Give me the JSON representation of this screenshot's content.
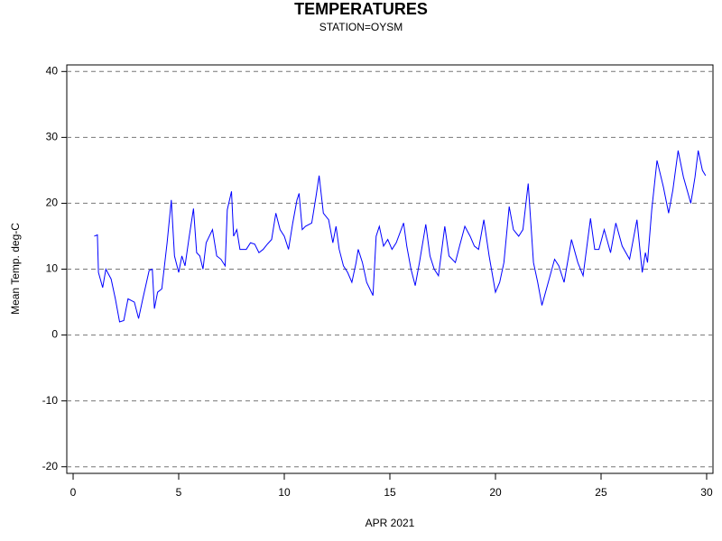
{
  "chart_data": {
    "type": "line",
    "title": "TEMPERATURES",
    "subtitle": "STATION=OYSM",
    "x_label": "APR 2021",
    "y_label": "Mean Temp. deg-C",
    "xlim": [
      -0.3,
      30.3
    ],
    "xticks": [
      0,
      5,
      10,
      15,
      20,
      25,
      30
    ],
    "ylim": [
      -21,
      41
    ],
    "yticks": [
      -20,
      -10,
      0,
      10,
      20,
      30,
      40
    ],
    "grid": true,
    "x": [
      1.0,
      1.15,
      1.2,
      1.4,
      1.55,
      1.8,
      2.0,
      2.2,
      2.4,
      2.6,
      2.9,
      3.1,
      3.3,
      3.6,
      3.75,
      3.85,
      4.0,
      4.2,
      4.45,
      4.65,
      4.8,
      5.0,
      5.15,
      5.3,
      5.5,
      5.7,
      5.85,
      6.0,
      6.15,
      6.3,
      6.6,
      6.8,
      7.0,
      7.2,
      7.3,
      7.5,
      7.6,
      7.75,
      7.9,
      8.2,
      8.4,
      8.6,
      8.8,
      9.0,
      9.2,
      9.4,
      9.6,
      9.8,
      10.0,
      10.2,
      10.4,
      10.6,
      10.7,
      10.85,
      11.0,
      11.3,
      11.5,
      11.65,
      11.85,
      12.1,
      12.3,
      12.45,
      12.6,
      12.8,
      13.0,
      13.2,
      13.4,
      13.5,
      13.7,
      13.9,
      14.2,
      14.35,
      14.5,
      14.7,
      14.9,
      15.1,
      15.3,
      15.65,
      15.8,
      16.0,
      16.2,
      16.4,
      16.7,
      16.9,
      17.1,
      17.3,
      17.6,
      17.8,
      18.1,
      18.3,
      18.55,
      18.8,
      19.0,
      19.2,
      19.45,
      19.7,
      20.0,
      20.2,
      20.4,
      20.65,
      20.85,
      21.1,
      21.3,
      21.55,
      21.8,
      22.0,
      22.2,
      22.5,
      22.8,
      23.0,
      23.25,
      23.6,
      23.9,
      24.15,
      24.5,
      24.7,
      24.9,
      25.15,
      25.45,
      25.7,
      26.0,
      26.35,
      26.7,
      26.95,
      27.1,
      27.2,
      27.4,
      27.65,
      27.95,
      28.2,
      28.4,
      28.65,
      28.9,
      29.25,
      29.45,
      29.6,
      29.8,
      29.95
    ],
    "series": [
      {
        "name": "Mean Temp.",
        "color": "#0000ff",
        "values": [
          15,
          15.2,
          9.5,
          7.2,
          10,
          8.5,
          5.5,
          2,
          2.2,
          5.5,
          5,
          2.5,
          5.5,
          9.8,
          10,
          4,
          6.5,
          7,
          14,
          20.5,
          12,
          9.5,
          12,
          10.5,
          15,
          19.2,
          12.5,
          12,
          10,
          14,
          16,
          12,
          11.5,
          10.5,
          19,
          21.8,
          15,
          16,
          13,
          13,
          14,
          13.8,
          12.5,
          13,
          13.8,
          14.5,
          18.5,
          16,
          15,
          13,
          17,
          20.5,
          21.5,
          16,
          16.5,
          17,
          21,
          24.2,
          18.5,
          17.5,
          14,
          16.5,
          13,
          10.5,
          9.5,
          8,
          11,
          13,
          11,
          8,
          6,
          15,
          16.5,
          13.5,
          14.5,
          13,
          14,
          17,
          13.5,
          10,
          7.5,
          11,
          16.8,
          12,
          10,
          9,
          16.5,
          12,
          11,
          13.5,
          16.5,
          15,
          13.5,
          13,
          17.5,
          12,
          6.5,
          8,
          11,
          19.5,
          16,
          15,
          16,
          23,
          11,
          8,
          4.5,
          8,
          11.5,
          10.5,
          8,
          14.5,
          11,
          9,
          17.7,
          13,
          13,
          16,
          12.5,
          17,
          13.5,
          11.5,
          17.5,
          9.5,
          12.5,
          11,
          19,
          26.5,
          22.5,
          18.5,
          22,
          28,
          24,
          20,
          24,
          28,
          25,
          24.2
        ]
      }
    ]
  }
}
